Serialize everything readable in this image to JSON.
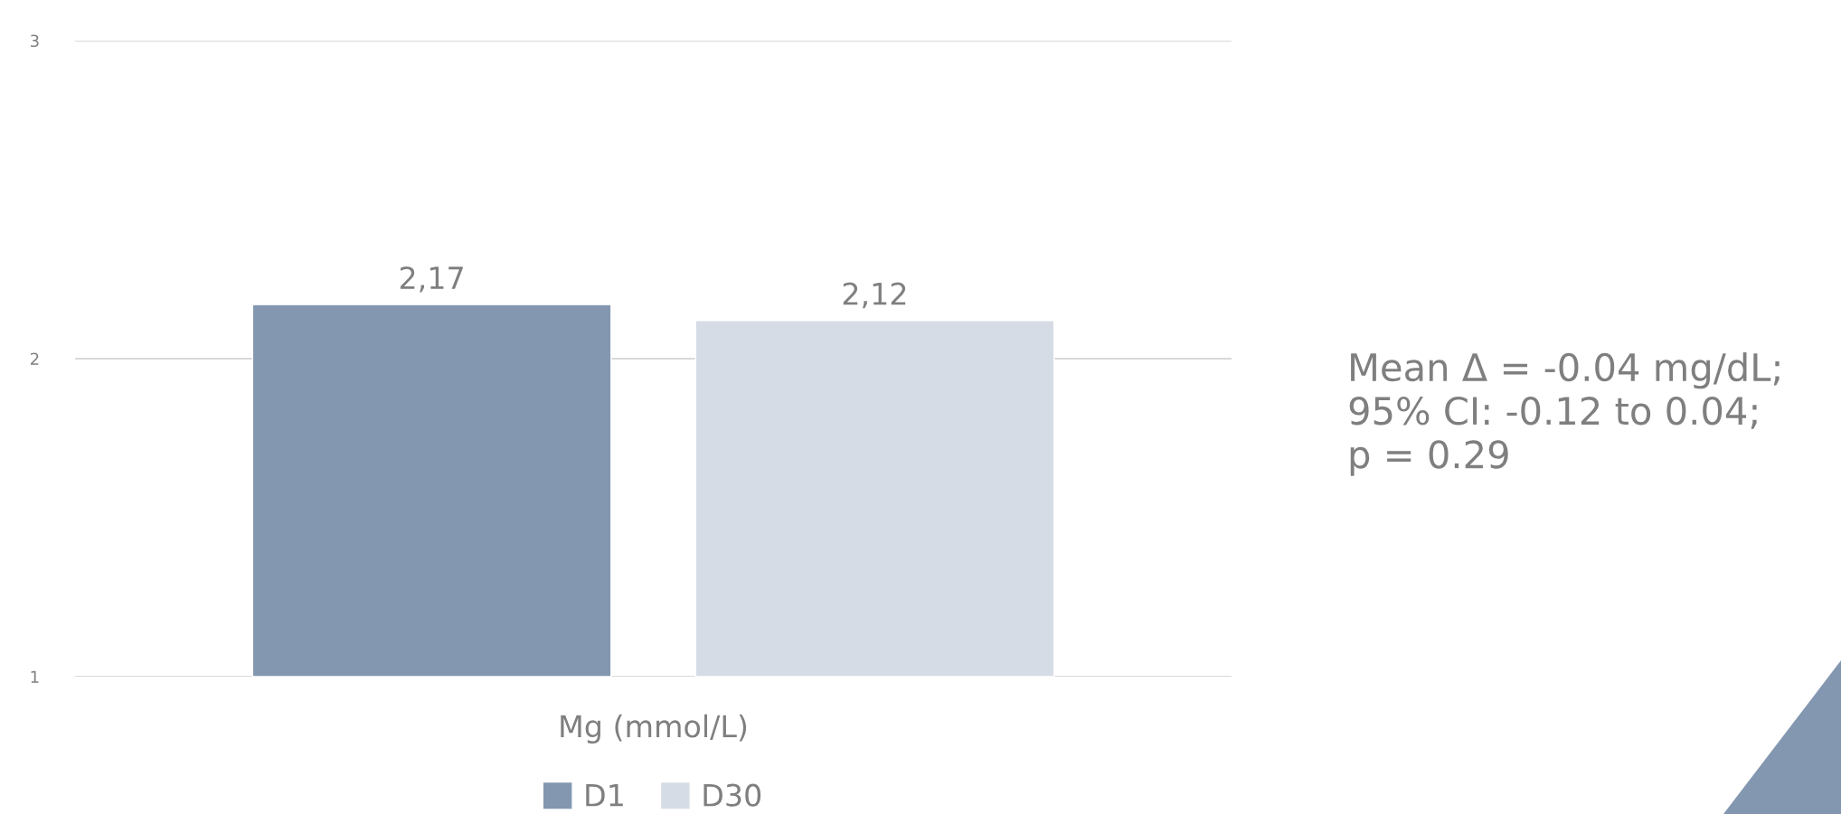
{
  "chart_data": {
    "type": "bar",
    "categories": [
      "Mg (mmol/L)"
    ],
    "series": [
      {
        "name": "D1",
        "color": "#8497b0",
        "values": [
          2.17
        ],
        "value_labels": [
          "2,17"
        ]
      },
      {
        "name": "D30",
        "color": "#d6dce5",
        "values": [
          2.12
        ],
        "value_labels": [
          "2,12"
        ]
      }
    ],
    "ylim": [
      1,
      3
    ],
    "yticks": [
      1,
      2,
      3
    ],
    "grid": "y",
    "legend": "bottom",
    "annotations": [
      "Mean Δ = -0.04 mg/dL;\n95% CI: -0.12 to 0.04;\np = 0.29"
    ]
  }
}
